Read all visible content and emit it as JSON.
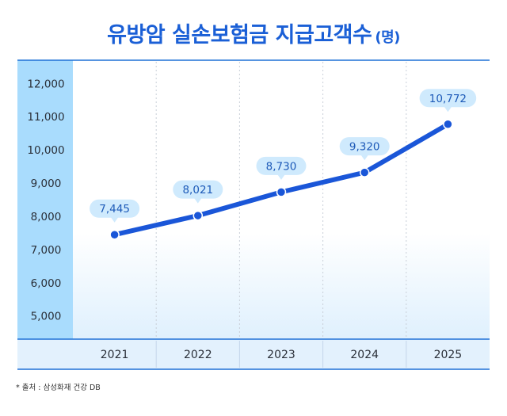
{
  "title": "유방암 실손보험금 지급고객수",
  "unit": "(명)",
  "source": "* 출처 : 삼성화재 건강 DB",
  "colors": {
    "title": "#1a5fd6",
    "line": "#1a56d8",
    "label_bg": "#cfeafd",
    "label_text": "#1d5ab8",
    "y_axis_panel": "#a9dcfd",
    "x_axis_panel": "#e3f1fd",
    "border": "#1f70d6"
  },
  "chart_data": {
    "type": "line",
    "title": "유방암 실손보험금 지급고객수",
    "xlabel": "",
    "ylabel": "",
    "categories": [
      "2021",
      "2022",
      "2023",
      "2024",
      "2025"
    ],
    "series": [
      {
        "values": [
          7445,
          8021,
          8730,
          9320,
          10772
        ]
      }
    ],
    "value_labels": [
      "7,445",
      "8,021",
      "8,730",
      "9,320",
      "10,772"
    ],
    "y_ticks": [
      {
        "value": 5000,
        "label": "5,000"
      },
      {
        "value": 6000,
        "label": "6,000"
      },
      {
        "value": 7000,
        "label": "7,000"
      },
      {
        "value": 8000,
        "label": "8,000"
      },
      {
        "value": 9000,
        "label": "9,000"
      },
      {
        "value": 10000,
        "label": "10,000"
      },
      {
        "value": 11000,
        "label": "11,000"
      },
      {
        "value": 12000,
        "label": "12,000"
      }
    ],
    "ylim": [
      4300,
      12700
    ],
    "grid": "vertical-dotted",
    "legend": "none"
  }
}
